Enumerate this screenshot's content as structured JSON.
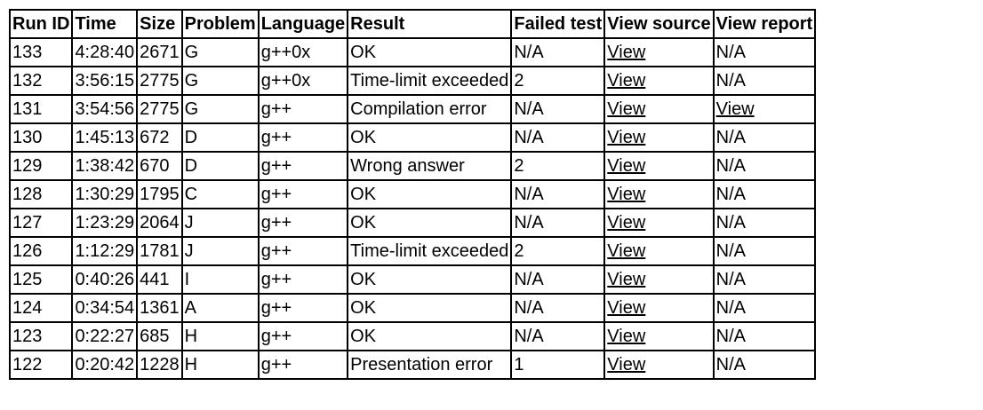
{
  "headers": [
    "Run ID",
    "Time",
    "Size",
    "Problem",
    "Language",
    "Result",
    "Failed test",
    "View source",
    "View report"
  ],
  "rows": [
    [
      "133",
      "4:28:40",
      "2671",
      "G",
      "g++0x",
      "OK",
      "N/A",
      "View",
      "N/A"
    ],
    [
      "132",
      "3:56:15",
      "2775",
      "G",
      "g++0x",
      "Time-limit exceeded",
      "2",
      "View",
      "N/A"
    ],
    [
      "131",
      "3:54:56",
      "2775",
      "G",
      "g++",
      "Compilation error",
      "N/A",
      "View",
      "View"
    ],
    [
      "130",
      "1:45:13",
      "672",
      "D",
      "g++",
      "OK",
      "N/A",
      "View",
      "N/A"
    ],
    [
      "129",
      "1:38:42",
      "670",
      "D",
      "g++",
      "Wrong answer",
      "2",
      "View",
      "N/A"
    ],
    [
      "128",
      "1:30:29",
      "1795",
      "C",
      "g++",
      "OK",
      "N/A",
      "View",
      "N/A"
    ],
    [
      "127",
      "1:23:29",
      "2064",
      "J",
      "g++",
      "OK",
      "N/A",
      "View",
      "N/A"
    ],
    [
      "126",
      "1:12:29",
      "1781",
      "J",
      "g++",
      "Time-limit exceeded",
      "2",
      "View",
      "N/A"
    ],
    [
      "125",
      "0:40:26",
      "441",
      "I",
      "g++",
      "OK",
      "N/A",
      "View",
      "N/A"
    ],
    [
      "124",
      "0:34:54",
      "1361",
      "A",
      "g++",
      "OK",
      "N/A",
      "View",
      "N/A"
    ],
    [
      "123",
      "0:22:27",
      "685",
      "H",
      "g++",
      "OK",
      "N/A",
      "View",
      "N/A"
    ],
    [
      "122",
      "0:20:42",
      "1228",
      "H",
      "g++",
      "Presentation error",
      "1",
      "View",
      "N/A"
    ]
  ]
}
